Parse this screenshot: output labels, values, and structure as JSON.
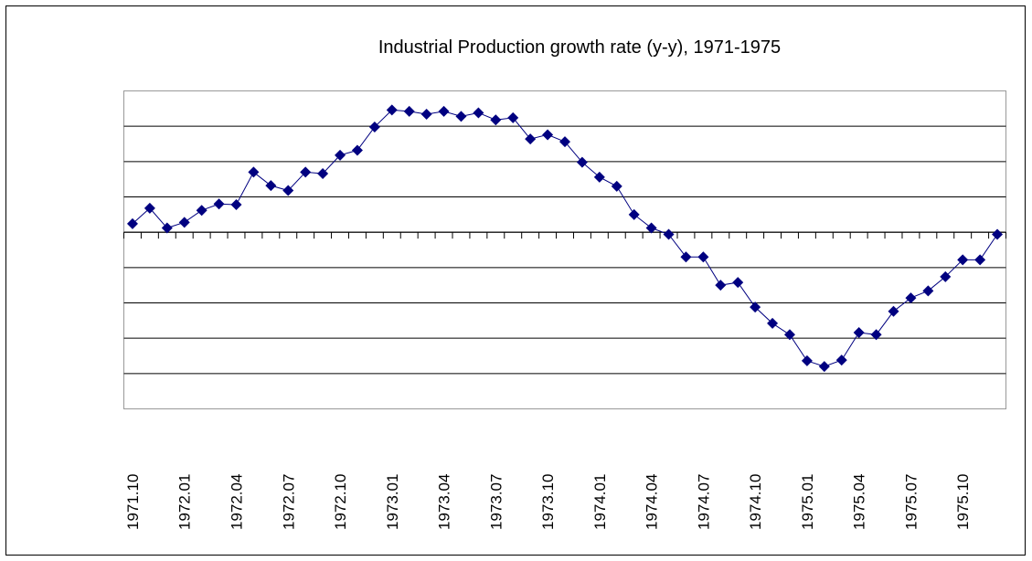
{
  "chart_data": {
    "type": "line",
    "title": "Industrial Production growth rate (y-y), 1971-1975",
    "categories": [
      "1971.10",
      null,
      null,
      "1972.01",
      null,
      null,
      "1972.04",
      null,
      null,
      "1972.07",
      null,
      null,
      "1972.10",
      null,
      null,
      "1973.01",
      null,
      null,
      "1973.04",
      null,
      null,
      "1973.07",
      null,
      null,
      "1973.10",
      null,
      null,
      "1974.01",
      null,
      null,
      "1974.04",
      null,
      null,
      "1974.07",
      null,
      null,
      "1974.10",
      null,
      null,
      "1975.01",
      null,
      null,
      "1975.04",
      null,
      null,
      "1975.07",
      null,
      null,
      "1975.10",
      null,
      null
    ],
    "values": [
      1.2,
      3.4,
      0.6,
      1.4,
      3.1,
      4.0,
      3.9,
      8.5,
      6.6,
      5.9,
      8.5,
      8.3,
      10.9,
      11.6,
      14.9,
      17.3,
      17.1,
      16.7,
      17.1,
      16.4,
      16.9,
      15.9,
      16.2,
      13.2,
      13.8,
      12.8,
      9.9,
      7.8,
      6.5,
      2.5,
      0.6,
      -0.3,
      -3.5,
      -3.5,
      -7.5,
      -7.1,
      -10.6,
      -12.9,
      -14.5,
      -18.2,
      -19.0,
      -18.1,
      -14.2,
      -14.5,
      -11.2,
      -9.3,
      -8.3,
      -6.3,
      -3.9,
      -3.9,
      -0.3
    ],
    "color": "#000080",
    "ylim": [
      -25,
      20
    ],
    "yticks": [
      -25,
      -20,
      -15,
      -10,
      -5,
      0,
      5,
      10,
      15,
      20
    ],
    "grid": true
  }
}
